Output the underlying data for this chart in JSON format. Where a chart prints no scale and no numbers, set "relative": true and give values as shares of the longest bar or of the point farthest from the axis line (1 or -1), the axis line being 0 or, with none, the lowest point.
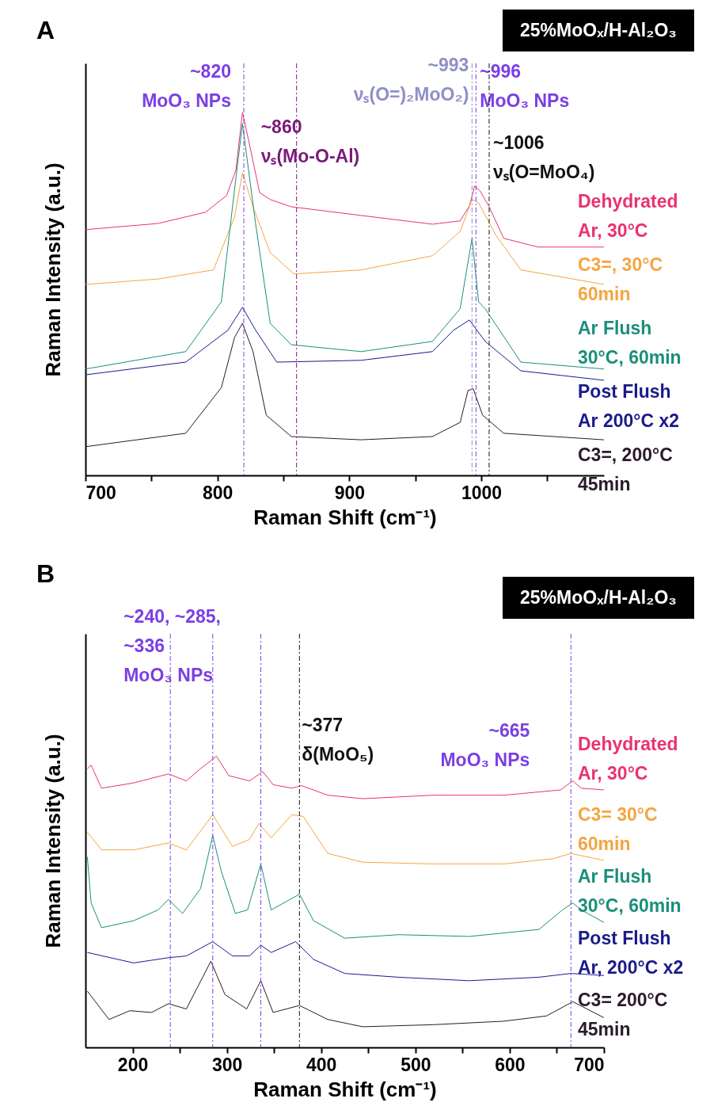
{
  "chart_data": [
    {
      "type": "line",
      "title": "A",
      "subtitle": "25%MoOₓ/H-Al₂O₃",
      "xlabel": "Raman Shift (cm⁻¹)",
      "ylabel": "Raman Intensity (a.u.)",
      "relative": true,
      "xlim": [
        700,
        1093
      ],
      "xticks": [
        700,
        {
          "value": 750,
          "label": null
        },
        800,
        {
          "value": 850,
          "label": null
        },
        900,
        {
          "value": 950,
          "label": null
        },
        1000,
        {
          "value": 1050,
          "label": null
        }
      ],
      "ref_lines": [
        {
          "axis": "x",
          "value": 820,
          "label": "~820\nMoO₃ NPs",
          "color": "#7b3fe4",
          "line_style": "dashed"
        },
        {
          "axis": "x",
          "value": 860,
          "label": "~860\nνₛ(Mo-O-Al)",
          "color": "#7a1a7a",
          "line_style": "dashed"
        },
        {
          "axis": "x",
          "value": 993,
          "label": "~993\nνₛ(O=)₂MoO₂)",
          "color": "#8f8fc8",
          "line_style": "dashed"
        },
        {
          "axis": "x",
          "value": 996,
          "label": "~996\nMoO₃ NPs",
          "color": "#7b3fe4",
          "line_style": "dashed"
        },
        {
          "axis": "x",
          "value": 1006,
          "label": "~1006\nνₛ(O=MoO₄)",
          "color": "#111111",
          "line_style": "dashed"
        }
      ],
      "series": [
        {
          "name": "Dehydrated\nAr, 30°C",
          "color": "#e8336e",
          "x": [
            700,
            755,
            791,
            807,
            814,
            819,
            824,
            832,
            840,
            856,
            909,
            963,
            984,
            991,
            995,
            999,
            1006,
            1017,
            1043,
            1093
          ],
          "values": [
            0.677,
            0.694,
            0.725,
            0.771,
            0.841,
            1.0,
            0.917,
            0.779,
            0.76,
            0.74,
            0.716,
            0.692,
            0.701,
            0.742,
            0.797,
            0.784,
            0.74,
            0.653,
            0.629,
            0.629
          ]
        },
        {
          "name": "C3=, 30°C\n60min",
          "color": "#f5a540",
          "x": [
            700,
            755,
            797,
            813,
            819,
            827,
            840,
            858,
            909,
            963,
            984,
            993,
            998,
            1011,
            1030,
            1093
          ],
          "values": [
            0.526,
            0.541,
            0.566,
            0.712,
            0.834,
            0.74,
            0.614,
            0.555,
            0.566,
            0.605,
            0.672,
            0.76,
            0.751,
            0.662,
            0.566,
            0.526
          ]
        },
        {
          "name": "Ar Flush\n30°C, 60min",
          "color": "#1a8f7a",
          "x": [
            700,
            776,
            803,
            813,
            819,
            829,
            840,
            856,
            909,
            963,
            984,
            993,
            998,
            1003,
            1030,
            1093
          ],
          "values": [
            0.293,
            0.341,
            0.478,
            0.788,
            0.969,
            0.692,
            0.419,
            0.36,
            0.341,
            0.369,
            0.459,
            0.653,
            0.478,
            0.459,
            0.312,
            0.293
          ]
        },
        {
          "name": "Post Flush\nAr 200°C x2",
          "color": "#1a1a8c",
          "x": [
            700,
            776,
            808,
            819,
            829,
            845,
            909,
            963,
            979,
            991,
            1003,
            1030,
            1093
          ],
          "values": [
            0.277,
            0.312,
            0.4,
            0.463,
            0.4,
            0.312,
            0.317,
            0.341,
            0.4,
            0.428,
            0.369,
            0.288,
            0.262
          ]
        },
        {
          "name": "C3=, 200°C\n45min",
          "color": "#2a1a2a",
          "x": [
            700,
            776,
            803,
            813,
            819,
            827,
            837,
            856,
            909,
            963,
            984,
            990,
            994,
            1001,
            1017,
            1093
          ],
          "values": [
            0.079,
            0.116,
            0.242,
            0.38,
            0.419,
            0.341,
            0.166,
            0.107,
            0.098,
            0.107,
            0.146,
            0.234,
            0.238,
            0.166,
            0.116,
            0.098
          ]
        }
      ]
    },
    {
      "type": "line",
      "title": "B",
      "subtitle": "25%MoOₓ/H-Al₂O₃",
      "xlabel": "Raman Shift (cm⁻¹)",
      "ylabel": "Raman Intensity (a.u.)",
      "relative": true,
      "xlim": [
        150,
        700
      ],
      "xticks": [
        200,
        {
          "value": 250,
          "label": null
        },
        300,
        {
          "value": 350,
          "label": null
        },
        400,
        {
          "value": 450,
          "label": null
        },
        500,
        {
          "value": 550,
          "label": null
        },
        600,
        {
          "value": 650,
          "label": null
        },
        700
      ],
      "ref_lines": [
        {
          "axis": "x",
          "value": 240,
          "label": "~240, ~285,\n~336\nMoO₃ NPs",
          "color": "#7b3fe4",
          "line_style": "dashed"
        },
        {
          "axis": "x",
          "value": 285,
          "color": "#7b3fe4",
          "line_style": "dashed"
        },
        {
          "axis": "x",
          "value": 336,
          "color": "#7b3fe4",
          "line_style": "dashed"
        },
        {
          "axis": "x",
          "value": 377,
          "label": "~377\nδ(MoO₅)",
          "color": "#111111",
          "line_style": "dashed"
        },
        {
          "axis": "x",
          "value": 665,
          "label": "~665\nMoO₃ NPs",
          "color": "#7b3fe4",
          "line_style": "dashed"
        }
      ],
      "series": [
        {
          "name": "Dehydrated\nAr, 30°C",
          "color": "#e8336e",
          "x": [
            152,
            156,
            167,
            201,
            238,
            257,
            272,
            289,
            302,
            324,
            338,
            349,
            369,
            379,
            407,
            444,
            519,
            594,
            654,
            667,
            676,
            700
          ],
          "values": [
            0.957,
            0.969,
            0.89,
            0.908,
            0.939,
            0.915,
            0.957,
            1.0,
            0.933,
            0.915,
            0.947,
            0.902,
            0.89,
            0.899,
            0.866,
            0.854,
            0.866,
            0.866,
            0.884,
            0.915,
            0.89,
            0.884
          ]
        },
        {
          "name": "C3= 30°C\n60min",
          "color": "#f5a540",
          "x": [
            152,
            167,
            201,
            238,
            257,
            285,
            306,
            324,
            334,
            347,
            369,
            381,
            407,
            444,
            519,
            594,
            646,
            665,
            700
          ],
          "values": [
            0.739,
            0.678,
            0.678,
            0.702,
            0.678,
            0.799,
            0.69,
            0.714,
            0.769,
            0.72,
            0.799,
            0.793,
            0.666,
            0.636,
            0.63,
            0.63,
            0.648,
            0.666,
            0.642
          ]
        },
        {
          "name": "Ar Flush\n30°C, 60min",
          "color": "#1a8f7a",
          "x": [
            152,
            156,
            167,
            201,
            227,
            238,
            253,
            272,
            285,
            294,
            309,
            322,
            336,
            347,
            377,
            392,
            425,
            482,
            557,
            631,
            656,
            667,
            676,
            700
          ],
          "values": [
            0.654,
            0.496,
            0.411,
            0.435,
            0.472,
            0.508,
            0.46,
            0.545,
            0.727,
            0.605,
            0.46,
            0.472,
            0.63,
            0.472,
            0.526,
            0.435,
            0.375,
            0.387,
            0.381,
            0.405,
            0.472,
            0.496,
            0.472,
            0.429
          ]
        },
        {
          "name": "Post Flush\nAr, 200°C x2",
          "color": "#1a1a8c",
          "x": [
            152,
            201,
            238,
            257,
            285,
            306,
            324,
            336,
            347,
            373,
            392,
            425,
            482,
            557,
            631,
            665,
            700
          ],
          "values": [
            0.326,
            0.29,
            0.308,
            0.314,
            0.363,
            0.314,
            0.314,
            0.351,
            0.326,
            0.363,
            0.302,
            0.254,
            0.241,
            0.229,
            0.241,
            0.254,
            0.247
          ]
        },
        {
          "name": "C3= 200°C\n45min",
          "color": "#2a1a2a",
          "x": [
            152,
            175,
            197,
            220,
            238,
            257,
            283,
            298,
            321,
            336,
            349,
            377,
            407,
            444,
            519,
            594,
            639,
            667,
            700
          ],
          "values": [
            0.193,
            0.096,
            0.126,
            0.12,
            0.15,
            0.132,
            0.296,
            0.181,
            0.132,
            0.229,
            0.12,
            0.144,
            0.096,
            0.071,
            0.078,
            0.09,
            0.108,
            0.157,
            0.102
          ]
        }
      ]
    }
  ]
}
